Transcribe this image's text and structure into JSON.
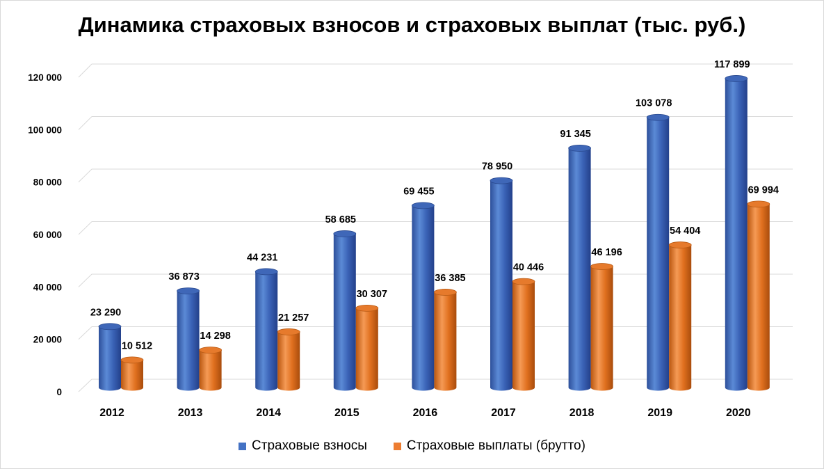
{
  "chart_data": {
    "type": "bar",
    "title": "Динамика страховых взносов и страховых выплат (тыс. руб.)",
    "categories": [
      "2012",
      "2013",
      "2014",
      "2015",
      "2016",
      "2017",
      "2018",
      "2019",
      "2020"
    ],
    "series": [
      {
        "name": "Страховые взносы",
        "color": "#4472c4",
        "values": [
          23290,
          36873,
          44231,
          58685,
          69455,
          78950,
          91345,
          103078,
          117899
        ],
        "labels": [
          "23 290",
          "36 873",
          "44 231",
          "58 685",
          "69 455",
          "78 950",
          "91 345",
          "103 078",
          "117 899"
        ]
      },
      {
        "name": "Страховые выплаты (брутто)",
        "color": "#ed7d31",
        "values": [
          10512,
          14298,
          21257,
          30307,
          36385,
          40446,
          46196,
          54404,
          69994
        ],
        "labels": [
          "10 512",
          "14 298",
          "21 257",
          "30 307",
          "36 385",
          "40 446",
          "46 196",
          "54 404",
          "69 994"
        ]
      }
    ],
    "yticks": [
      0,
      20000,
      40000,
      60000,
      80000,
      100000,
      120000
    ],
    "ytick_labels": [
      "0",
      "20 000",
      "40 000",
      "60 000",
      "80 000",
      "100 000",
      "120 000"
    ],
    "ylim": [
      0,
      120000
    ],
    "grid": true,
    "legend_position": "bottom",
    "style": "3d-cylinder"
  }
}
